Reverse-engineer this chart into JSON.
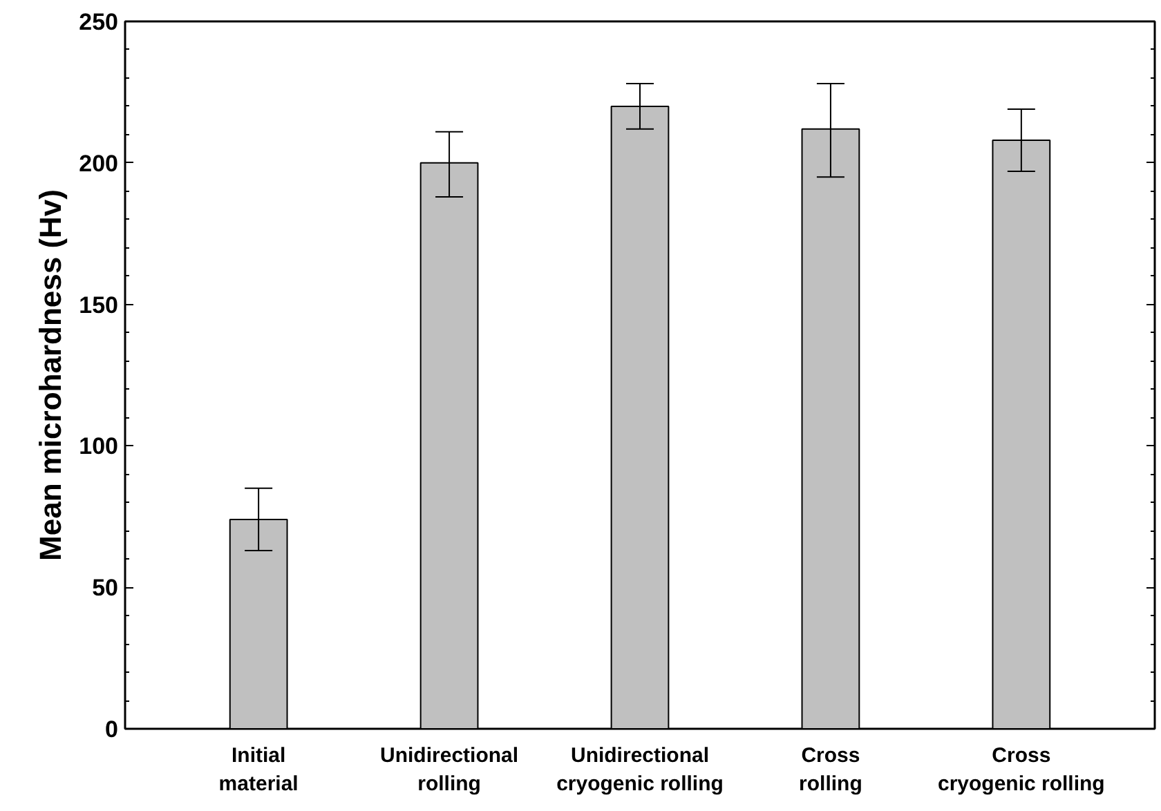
{
  "chart_data": {
    "type": "bar",
    "ylabel": "Mean microhardness (Hv)",
    "categories": [
      "Initial\nmaterial",
      "Unidirectional\nrolling",
      "Unidirectional\ncryogenic rolling",
      "Cross\nrolling",
      "Cross\ncryogenic rolling"
    ],
    "values": [
      74,
      200,
      220,
      212,
      208
    ],
    "errors": [
      [
        63,
        85
      ],
      [
        188,
        211
      ],
      [
        212,
        228
      ],
      [
        195,
        228
      ],
      [
        197,
        219
      ]
    ],
    "color": "#c0c0c0",
    "ylim": [
      0,
      250
    ],
    "yticks": [
      0,
      50,
      100,
      150,
      200,
      250
    ],
    "grid": false
  }
}
